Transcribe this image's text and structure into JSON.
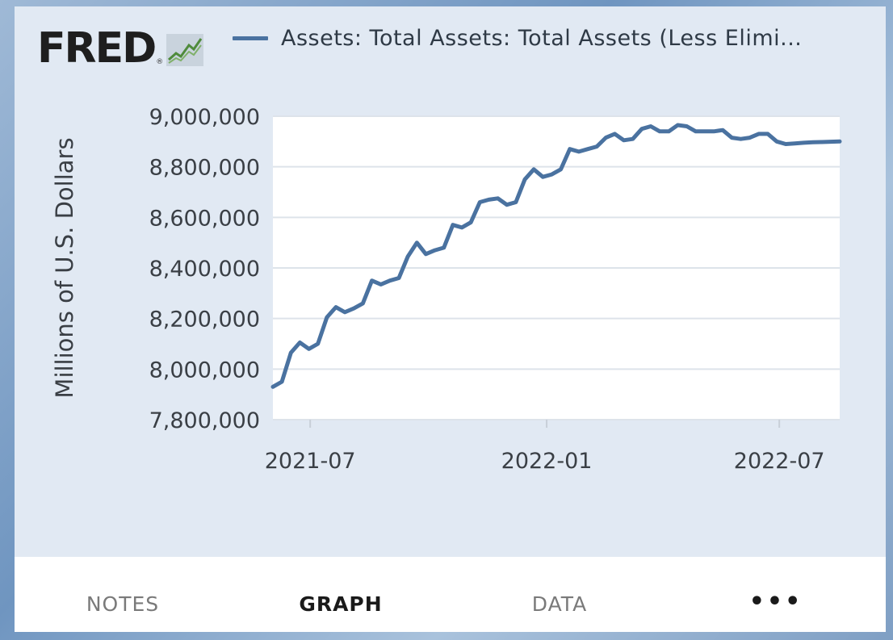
{
  "header": {
    "logo_text": "FRED",
    "logo_reg": "®",
    "logo_icon": "line-graph-icon",
    "legend_label": "Assets: Total Assets: Total Assets (Less Elimi..."
  },
  "colors": {
    "series": "#4a72a0",
    "plot_bg": "#ffffff",
    "card_bg": "#e1e9f3",
    "grid": "#dde3ea"
  },
  "tabs": {
    "notes": "NOTES",
    "graph": "GRAPH",
    "data": "DATA",
    "more": "•••"
  },
  "chart_data": {
    "type": "line",
    "title": "",
    "xlabel": "",
    "ylabel": "Millions of U.S. Dollars",
    "ylim": [
      7800000,
      9000000
    ],
    "yticks": [
      7800000,
      8000000,
      8200000,
      8400000,
      8600000,
      8800000,
      9000000
    ],
    "ytick_labels": [
      "7,800,000",
      "8,000,000",
      "8,200,000",
      "8,400,000",
      "8,600,000",
      "8,800,000",
      "9,000,000"
    ],
    "xlim": [
      "2021-06-02",
      "2022-08-17"
    ],
    "xticks": [
      "2021-07-01",
      "2022-01-01",
      "2022-07-01"
    ],
    "xtick_labels": [
      "2021-07",
      "2022-01",
      "2022-07"
    ],
    "grid": true,
    "legend": "top",
    "series": [
      {
        "name": "Assets: Total Assets: Total Assets (Less Elimi...",
        "color": "#4a72a0",
        "x": [
          "2021-06-02",
          "2021-06-09",
          "2021-06-16",
          "2021-06-23",
          "2021-06-30",
          "2021-07-07",
          "2021-07-14",
          "2021-07-21",
          "2021-07-28",
          "2021-08-04",
          "2021-08-11",
          "2021-08-18",
          "2021-08-25",
          "2021-09-01",
          "2021-09-08",
          "2021-09-15",
          "2021-09-22",
          "2021-09-29",
          "2021-10-06",
          "2021-10-13",
          "2021-10-20",
          "2021-10-27",
          "2021-11-03",
          "2021-11-10",
          "2021-11-17",
          "2021-11-24",
          "2021-12-01",
          "2021-12-08",
          "2021-12-15",
          "2021-12-22",
          "2021-12-29",
          "2022-01-05",
          "2022-01-12",
          "2022-01-19",
          "2022-01-26",
          "2022-02-02",
          "2022-02-09",
          "2022-02-16",
          "2022-02-23",
          "2022-03-02",
          "2022-03-09",
          "2022-03-16",
          "2022-03-23",
          "2022-03-30",
          "2022-04-06",
          "2022-04-13",
          "2022-04-20",
          "2022-04-27",
          "2022-05-04",
          "2022-05-11",
          "2022-05-18",
          "2022-05-25",
          "2022-06-01",
          "2022-06-08",
          "2022-06-15",
          "2022-06-22",
          "2022-06-29",
          "2022-07-06",
          "2022-07-13",
          "2022-07-20",
          "2022-07-27",
          "2022-08-03",
          "2022-08-10",
          "2022-08-17"
        ],
        "values": [
          7930000,
          7950000,
          8065000,
          8105000,
          8080000,
          8100000,
          8205000,
          8245000,
          8225000,
          8240000,
          8260000,
          8350000,
          8335000,
          8350000,
          8360000,
          8445000,
          8500000,
          8455000,
          8470000,
          8480000,
          8570000,
          8560000,
          8580000,
          8660000,
          8670000,
          8675000,
          8650000,
          8660000,
          8750000,
          8790000,
          8760000,
          8770000,
          8790000,
          8870000,
          8860000,
          8870000,
          8880000,
          8915000,
          8930000,
          8905000,
          8910000,
          8950000,
          8960000,
          8940000,
          8940000,
          8965000,
          8960000,
          8940000,
          8940000,
          8940000,
          8945000,
          8915000,
          8910000,
          8915000,
          8930000,
          8930000,
          8900000,
          8890000,
          8892000,
          8895000,
          8897000,
          8898000,
          8899000,
          8900000
        ]
      }
    ]
  }
}
